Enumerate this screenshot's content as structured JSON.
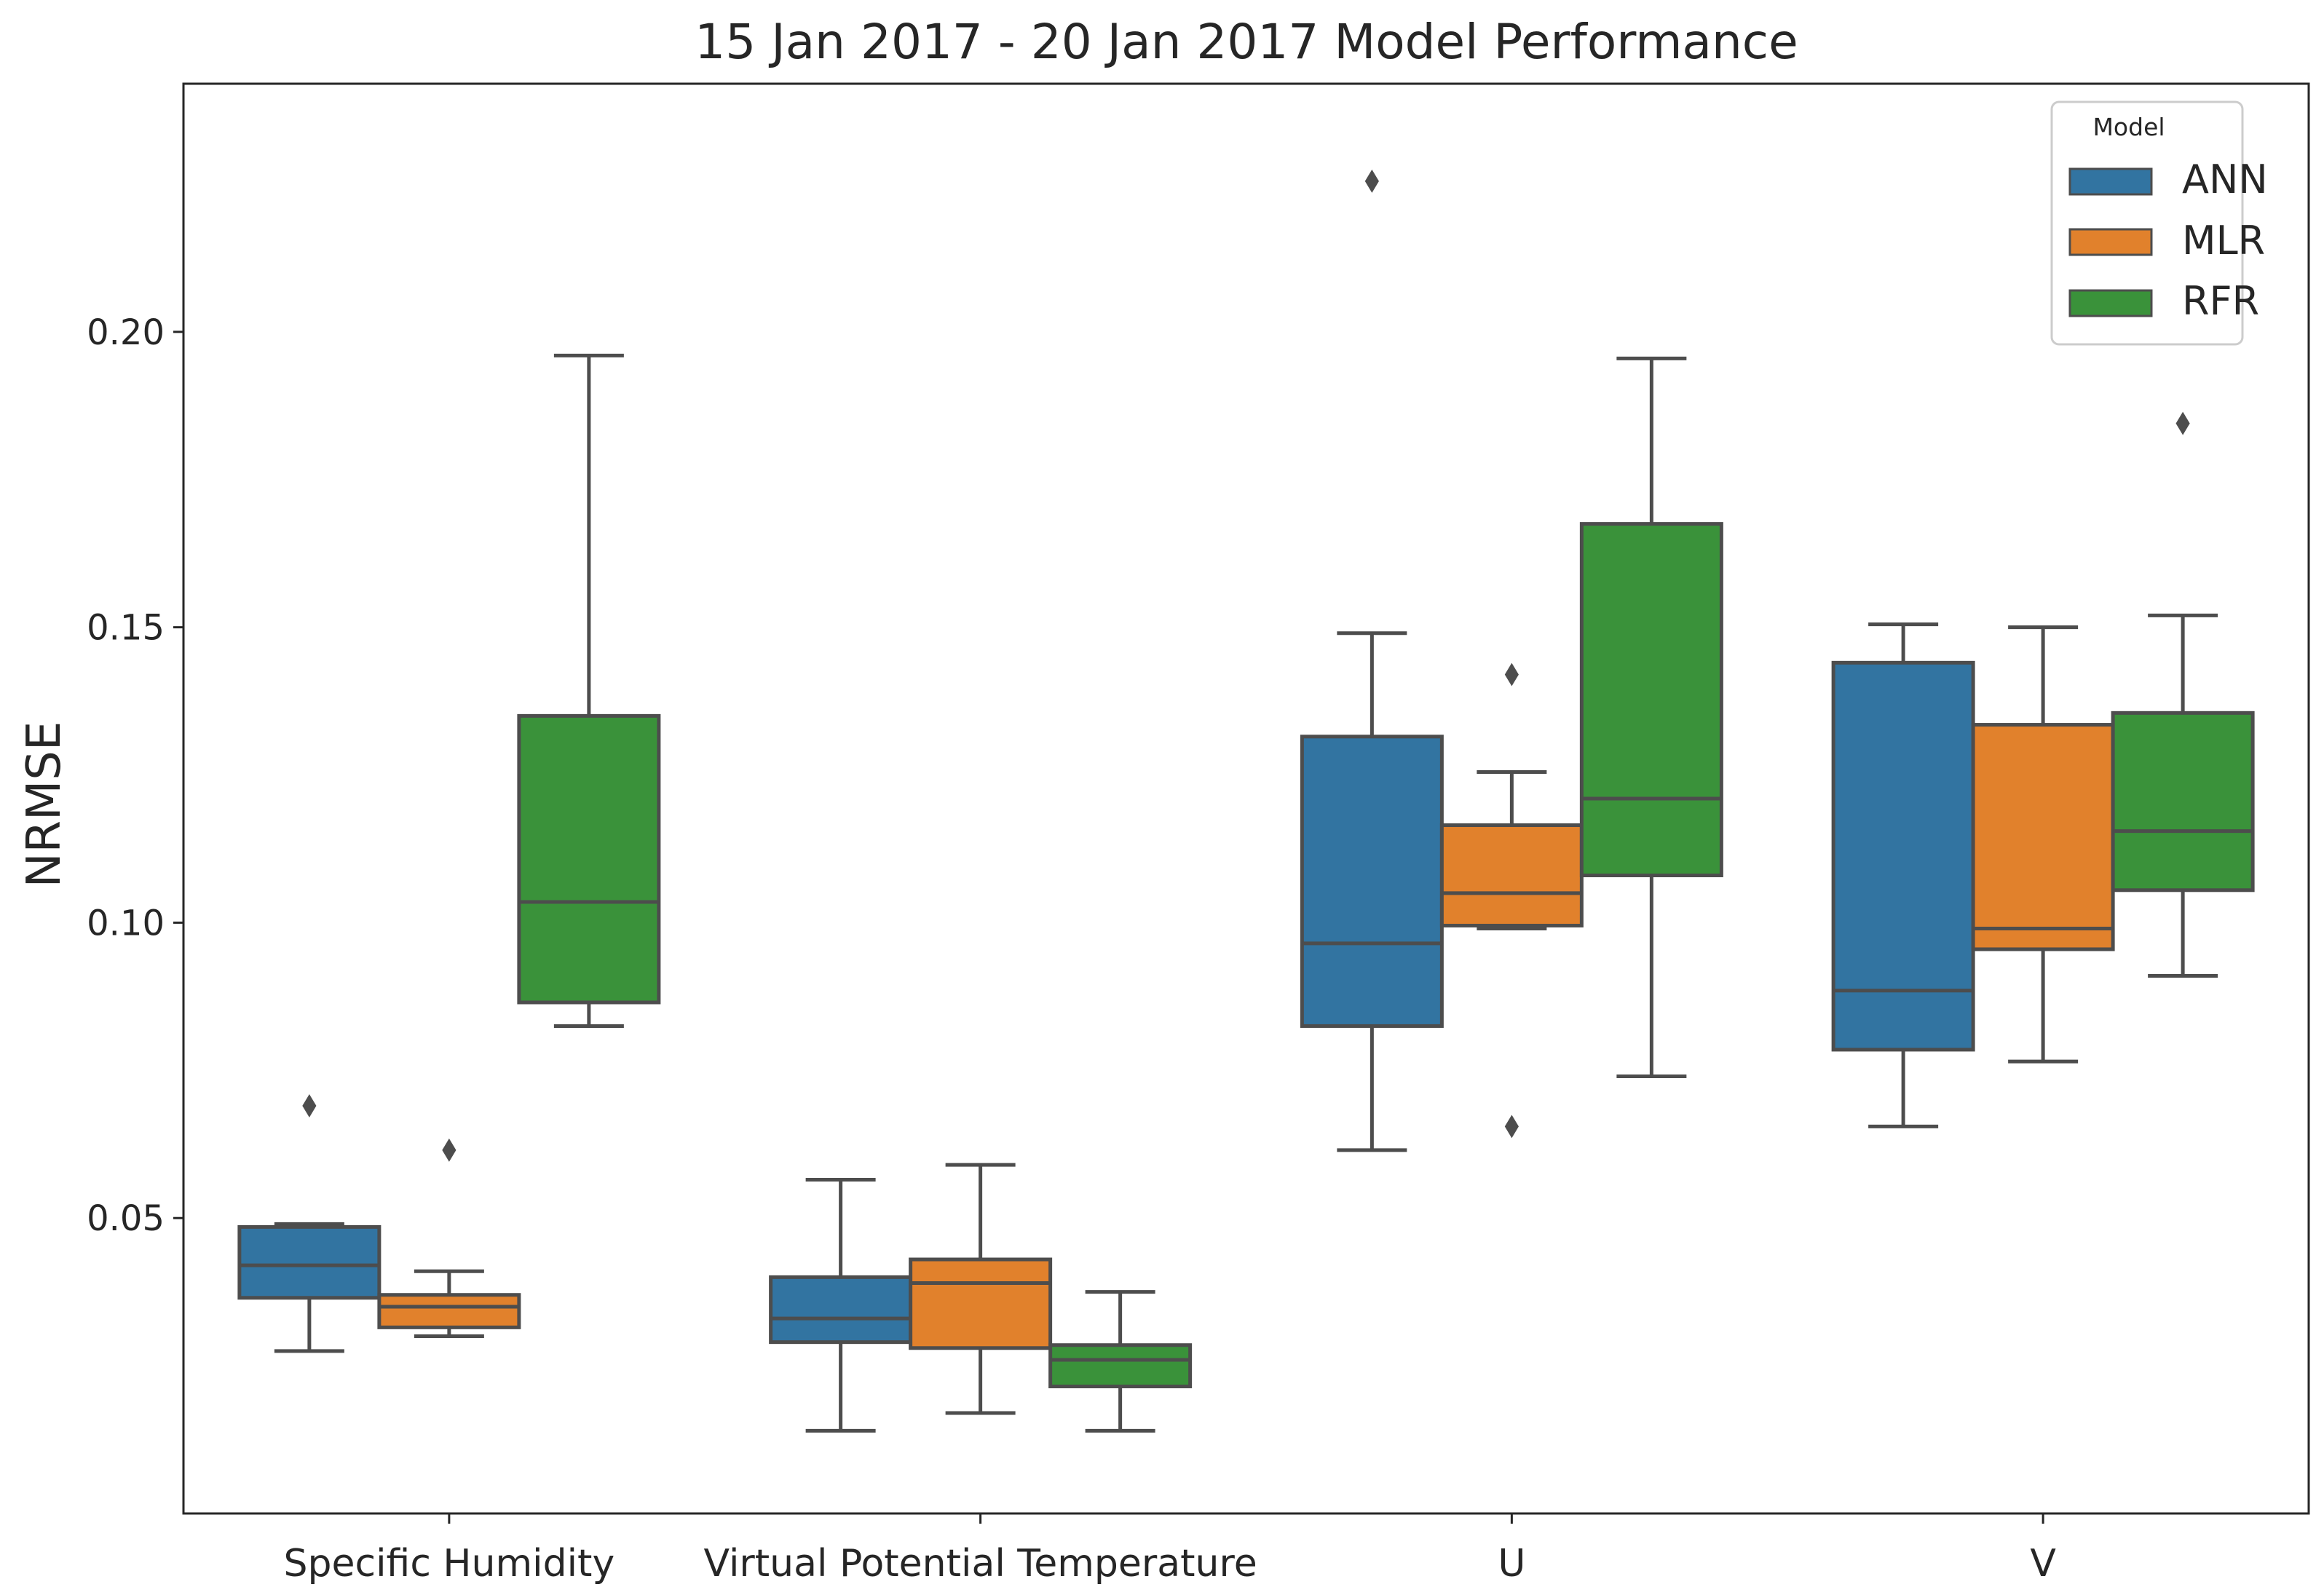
{
  "chart_data": {
    "type": "box",
    "title": "15 Jan 2017 - 20 Jan 2017 Model Performance",
    "xlabel": "",
    "ylabel": "NRMSE",
    "ylim": [
      0.0,
      0.242
    ],
    "yticks": [
      0.05,
      0.1,
      0.15,
      0.2
    ],
    "ytick_labels": [
      "0.05",
      "0.10",
      "0.15",
      "0.20"
    ],
    "grid": false,
    "categories": [
      "Specific Humidity",
      "Virtual Potential Temperature",
      "U",
      "V"
    ],
    "legend": {
      "title": "Model",
      "placement": "top-right",
      "entries": [
        "ANN",
        "MLR",
        "RFR"
      ]
    },
    "series": [
      {
        "name": "ANN",
        "color": "#3274a1",
        "boxes": [
          {
            "whisker_low": 0.0275,
            "q1": 0.0365,
            "median": 0.042,
            "q3": 0.0485,
            "whisker_high": 0.049,
            "outliers": [
              0.069
            ]
          },
          {
            "whisker_low": 0.014,
            "q1": 0.029,
            "median": 0.033,
            "q3": 0.04,
            "whisker_high": 0.0565,
            "outliers": []
          },
          {
            "whisker_low": 0.0615,
            "q1": 0.0825,
            "median": 0.0965,
            "q3": 0.1315,
            "whisker_high": 0.149,
            "outliers": [
              0.2255
            ]
          },
          {
            "whisker_low": 0.0655,
            "q1": 0.0785,
            "median": 0.0885,
            "q3": 0.144,
            "whisker_high": 0.1505,
            "outliers": []
          }
        ]
      },
      {
        "name": "MLR",
        "color": "#e1812c",
        "boxes": [
          {
            "whisker_low": 0.03,
            "q1": 0.0315,
            "median": 0.035,
            "q3": 0.037,
            "whisker_high": 0.041,
            "outliers": [
              0.0615
            ]
          },
          {
            "whisker_low": 0.017,
            "q1": 0.028,
            "median": 0.039,
            "q3": 0.043,
            "whisker_high": 0.059,
            "outliers": []
          },
          {
            "whisker_low": 0.099,
            "q1": 0.0995,
            "median": 0.105,
            "q3": 0.1165,
            "whisker_high": 0.1255,
            "outliers": [
              0.142,
              0.0655
            ]
          },
          {
            "whisker_low": 0.0765,
            "q1": 0.0955,
            "median": 0.099,
            "q3": 0.1335,
            "whisker_high": 0.15,
            "outliers": []
          }
        ]
      },
      {
        "name": "RFR",
        "color": "#3a923a",
        "boxes": [
          {
            "whisker_low": 0.0825,
            "q1": 0.0865,
            "median": 0.1035,
            "q3": 0.135,
            "whisker_high": 0.196,
            "outliers": []
          },
          {
            "whisker_low": 0.014,
            "q1": 0.0215,
            "median": 0.026,
            "q3": 0.0285,
            "whisker_high": 0.0375,
            "outliers": []
          },
          {
            "whisker_low": 0.074,
            "q1": 0.108,
            "median": 0.121,
            "q3": 0.1675,
            "whisker_high": 0.1955,
            "outliers": []
          },
          {
            "whisker_low": 0.091,
            "q1": 0.1055,
            "median": 0.1155,
            "q3": 0.1355,
            "whisker_high": 0.152,
            "outliers": [
              0.1845
            ]
          }
        ]
      }
    ]
  }
}
